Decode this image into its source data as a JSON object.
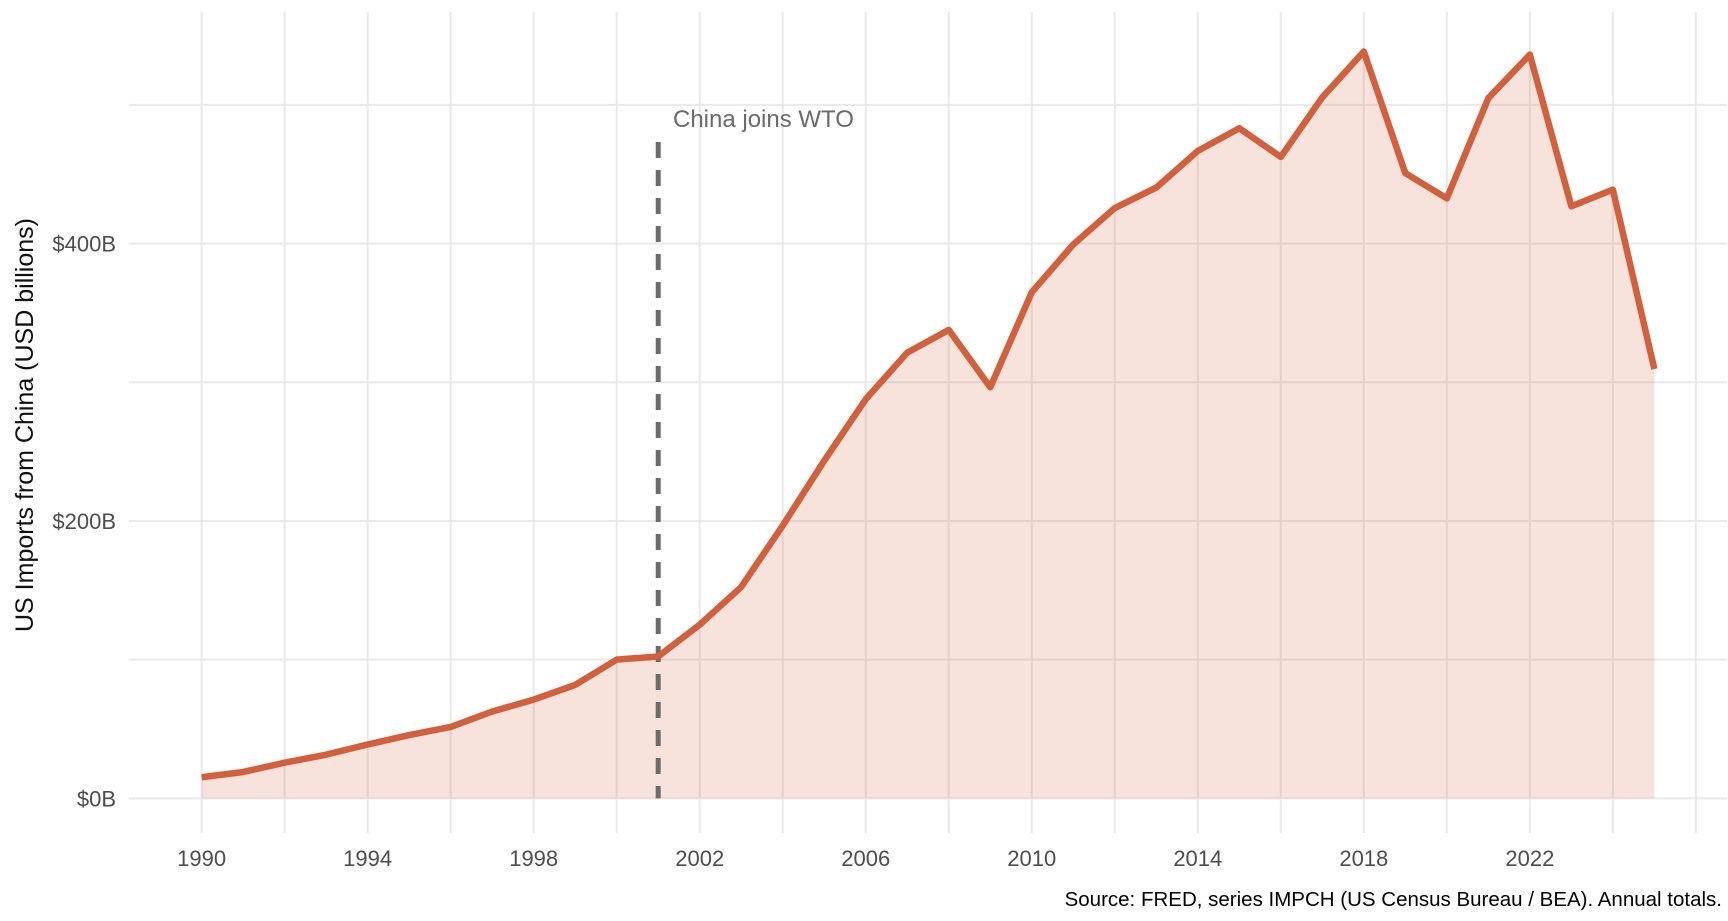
{
  "page": {
    "background": "#ffffff"
  },
  "chart_data": {
    "type": "area",
    "title": "",
    "xlabel": "",
    "ylabel": "US Imports from China (USD billions)",
    "caption": "Source: FRED, series IMPCH (US Census Bureau / BEA). Annual totals.",
    "series_name": "US Imports from China",
    "x": [
      1990,
      1991,
      1992,
      1993,
      1994,
      1995,
      1996,
      1997,
      1998,
      1999,
      2000,
      2001,
      2002,
      2003,
      2004,
      2005,
      2006,
      2007,
      2008,
      2009,
      2010,
      2011,
      2012,
      2013,
      2014,
      2015,
      2016,
      2017,
      2018,
      2019,
      2020,
      2021,
      2022,
      2023,
      2024,
      2025
    ],
    "values": [
      15.2,
      19.0,
      25.7,
      31.5,
      38.8,
      45.6,
      51.5,
      62.6,
      71.2,
      81.8,
      100.0,
      102.3,
      125.2,
      152.4,
      196.7,
      243.5,
      287.8,
      321.4,
      337.8,
      296.4,
      364.9,
      399.4,
      425.6,
      440.4,
      466.8,
      483.2,
      462.5,
      505.5,
      538.5,
      450.8,
      432.6,
      504.9,
      536.3,
      426.9,
      438.9,
      309.6
    ],
    "x_axis": {
      "tick_values": [
        1990,
        1994,
        1998,
        2002,
        2006,
        2010,
        2014,
        2018,
        2022
      ],
      "tick_labels": [
        "1990",
        "1994",
        "1998",
        "2002",
        "2006",
        "2010",
        "2014",
        "2018",
        "2022"
      ],
      "grid_start": 1990,
      "grid_end": 2026,
      "grid_step": 2,
      "xlim": [
        1988.25,
        2026.75
      ]
    },
    "y_axis": {
      "tick_values": [
        0,
        200,
        400
      ],
      "tick_labels": [
        "$0B",
        "$200B",
        "$400B"
      ],
      "grid_values": [
        0,
        100,
        200,
        300,
        400,
        500
      ],
      "ylim": [
        -25,
        567
      ]
    },
    "annotation": {
      "label": "China joins WTO",
      "x": 2001
    },
    "legend": false,
    "grid": true,
    "colors": {
      "line": "#d2603c",
      "fill": "#d2603c",
      "fill_opacity": 0.18,
      "grid": "#e9e9e9",
      "annotation_line": "#6b6b6b",
      "annotation_text": "#6a6a6a",
      "tick_text": "#4d4d4d",
      "axis_title_text": "#111111",
      "caption_text": "#000000"
    }
  }
}
